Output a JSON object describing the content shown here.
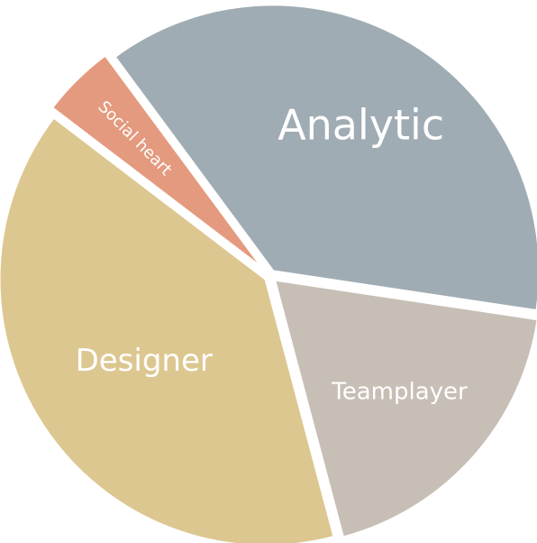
{
  "chart_data": {
    "type": "pie",
    "exploded": true,
    "legend": "none",
    "slices": [
      {
        "label": "Analytic",
        "value": 37.5,
        "color": "#a0acb3"
      },
      {
        "label": "Teamplayer",
        "value": 18.5,
        "color": "#c7beb5"
      },
      {
        "label": "Designer",
        "value": 39.5,
        "color": "#ddc790"
      },
      {
        "label": "Social heart",
        "value": 4.5,
        "color": "#e49a7e"
      }
    ]
  }
}
